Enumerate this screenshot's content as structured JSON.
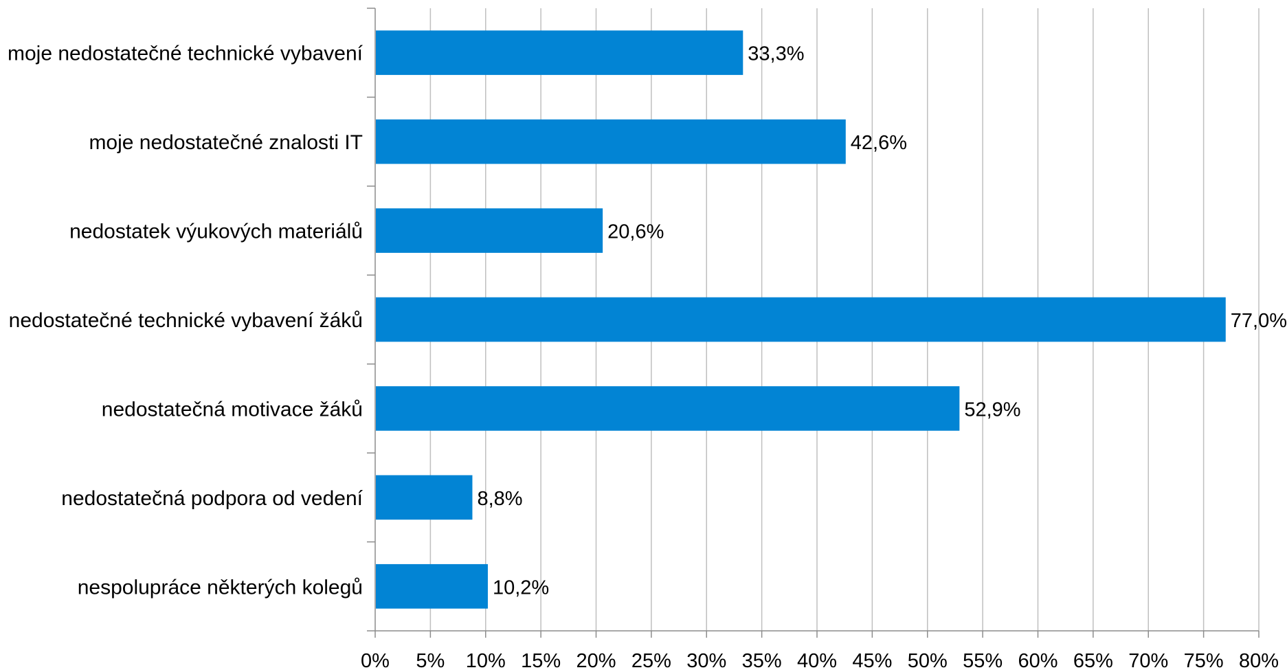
{
  "chart_data": {
    "type": "bar",
    "orientation": "horizontal",
    "categories": [
      "moje nedostatečné technické vybavení",
      "moje nedostatečné znalosti IT",
      "nedostatek výukových materiálů",
      "nedostatečné technické vybavení žáků",
      "nedostatečná motivace žáků",
      "nedostatečná podpora od vedení",
      "nespolupráce některých kolegů"
    ],
    "values": [
      33.3,
      42.6,
      20.6,
      77.0,
      52.9,
      8.8,
      10.2
    ],
    "value_labels": [
      "33,3%",
      "42,6%",
      "20,6%",
      "77,0%",
      "52,9%",
      "8,8%",
      "10,2%"
    ],
    "xlim": [
      0,
      80
    ],
    "x_ticks": [
      "0%",
      "5%",
      "10%",
      "15%",
      "20%",
      "25%",
      "30%",
      "35%",
      "40%",
      "45%",
      "50%",
      "55%",
      "60%",
      "65%",
      "70%",
      "75%",
      "80%"
    ],
    "grid": true,
    "legend": false,
    "title": "",
    "xlabel": "",
    "ylabel": "",
    "colors": {
      "bar": "#0284D4",
      "grid": "#BFBFBF",
      "axis": "#8C8C8C"
    }
  }
}
